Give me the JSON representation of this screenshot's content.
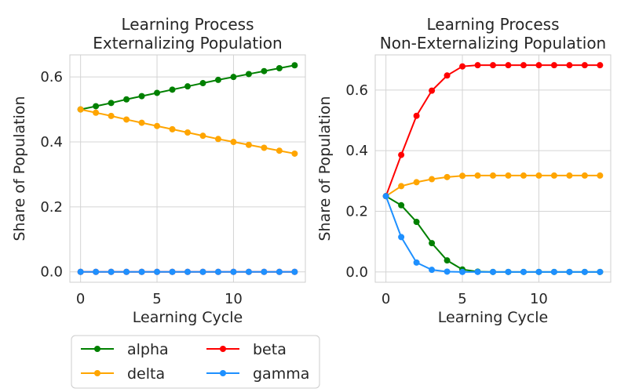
{
  "chart_data": [
    {
      "type": "line",
      "title": "Learning Process\nExternalizing Population",
      "xlabel": "Learning Cycle",
      "ylabel": "Share of Population",
      "x": [
        0,
        1,
        2,
        3,
        4,
        5,
        6,
        7,
        8,
        9,
        10,
        11,
        12,
        13,
        14
      ],
      "xlim": [
        -0.7,
        14.7
      ],
      "ylim": [
        -0.032,
        0.668
      ],
      "xticks": [
        0,
        5,
        10
      ],
      "yticks": [
        0.0,
        0.2,
        0.4,
        0.6
      ],
      "ytick_labels": [
        "0.0",
        "0.2",
        "0.4",
        "0.6"
      ],
      "grid": true,
      "series": [
        {
          "name": "alpha",
          "color": "#008000",
          "values": [
            0.5,
            0.51,
            0.52,
            0.531,
            0.541,
            0.551,
            0.561,
            0.571,
            0.581,
            0.591,
            0.6,
            0.609,
            0.618,
            0.627,
            0.636
          ]
        },
        {
          "name": "delta",
          "color": "#FFA500",
          "values": [
            0.5,
            0.49,
            0.48,
            0.469,
            0.459,
            0.449,
            0.439,
            0.429,
            0.419,
            0.409,
            0.4,
            0.391,
            0.382,
            0.373,
            0.364
          ]
        },
        {
          "name": "beta",
          "color": "#FF0000",
          "values": [
            0,
            0,
            0,
            0,
            0,
            0,
            0,
            0,
            0,
            0,
            0,
            0,
            0,
            0,
            0
          ]
        },
        {
          "name": "gamma",
          "color": "#1E90FF",
          "values": [
            0,
            0,
            0,
            0,
            0,
            0,
            0,
            0,
            0,
            0,
            0,
            0,
            0,
            0,
            0
          ]
        }
      ]
    },
    {
      "type": "line",
      "title": "Learning Process\nNon-Externalizing Population",
      "xlabel": "Learning Cycle",
      "ylabel": "Share of Population",
      "x": [
        0,
        1,
        2,
        3,
        4,
        5,
        6,
        7,
        8,
        9,
        10,
        11,
        12,
        13,
        14
      ],
      "xlim": [
        -0.7,
        14.7
      ],
      "ylim": [
        -0.034,
        0.716
      ],
      "xticks": [
        0,
        5,
        10
      ],
      "yticks": [
        0.0,
        0.2,
        0.4,
        0.6
      ],
      "ytick_labels": [
        "0.0",
        "0.2",
        "0.4",
        "0.6"
      ],
      "grid": true,
      "series": [
        {
          "name": "alpha",
          "color": "#008000",
          "values": [
            0.25,
            0.22,
            0.165,
            0.095,
            0.038,
            0.008,
            0.001,
            0,
            0,
            0,
            0,
            0,
            0,
            0,
            0
          ]
        },
        {
          "name": "delta",
          "color": "#FFA500",
          "values": [
            0.25,
            0.283,
            0.296,
            0.306,
            0.313,
            0.317,
            0.318,
            0.318,
            0.318,
            0.318,
            0.318,
            0.318,
            0.318,
            0.318,
            0.318
          ]
        },
        {
          "name": "beta",
          "color": "#FF0000",
          "values": [
            0.25,
            0.386,
            0.515,
            0.598,
            0.648,
            0.678,
            0.682,
            0.682,
            0.682,
            0.682,
            0.682,
            0.682,
            0.682,
            0.682,
            0.682
          ]
        },
        {
          "name": "gamma",
          "color": "#1E90FF",
          "values": [
            0.25,
            0.115,
            0.031,
            0.007,
            0.001,
            0,
            0,
            0,
            0,
            0,
            0,
            0,
            0,
            0,
            0
          ]
        }
      ]
    }
  ],
  "legend": {
    "placement": "bottom-left",
    "entries": [
      {
        "name": "alpha",
        "color": "#008000"
      },
      {
        "name": "beta",
        "color": "#FF0000"
      },
      {
        "name": "delta",
        "color": "#FFA500"
      },
      {
        "name": "gamma",
        "color": "#1E90FF"
      }
    ]
  }
}
